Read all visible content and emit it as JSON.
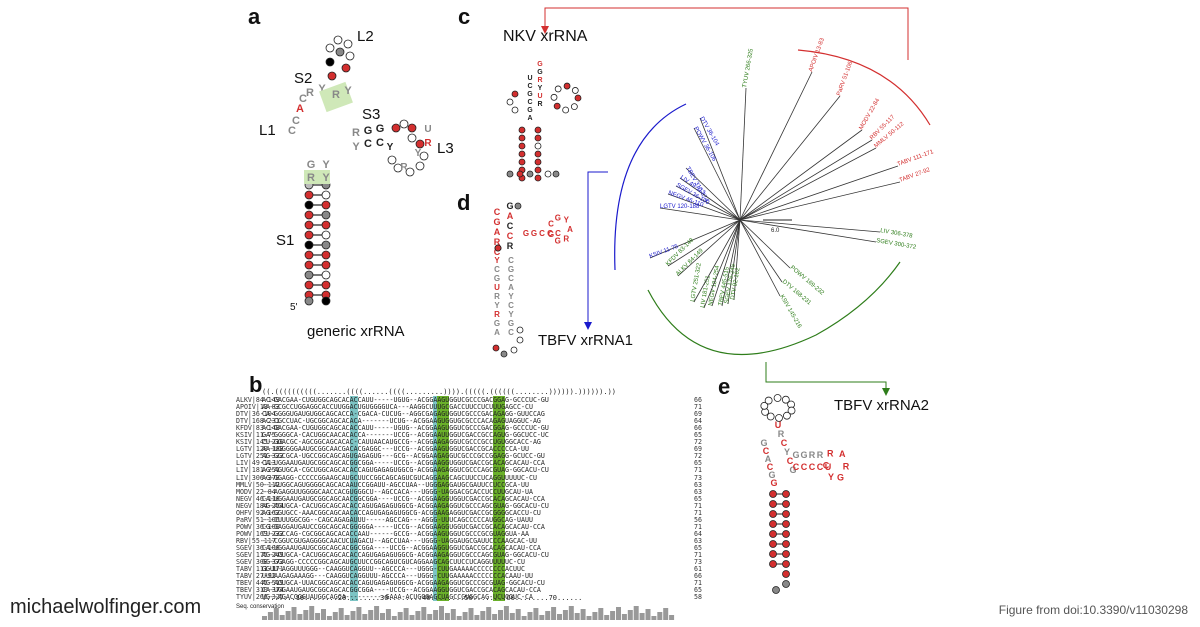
{
  "panels": {
    "a": "a",
    "b": "b",
    "c": "c",
    "d": "d",
    "e": "e"
  },
  "panel_a": {
    "labels": {
      "L2": "L2",
      "S2": "S2",
      "S3": "S3",
      "L1": "L1",
      "L3": "L3",
      "S1": "S1",
      "five_prime": "5'"
    },
    "caption": "generic xrRNA"
  },
  "panel_c": {
    "title_nkv": "NKV xrRNA",
    "tree_red": [
      "APOIV 13-83",
      "PaRV 51-106",
      "MODV 22-84",
      "RBV 55-117",
      "MMLV 50-112",
      "TABV 111-171",
      "TABV 27-92"
    ],
    "tree_blue": [
      "DTV 36-104",
      "POWV 36-106",
      "TBEV 310-374",
      "LIV 49-113",
      "SGEV 36-100",
      "NEGV 46-110",
      "LGTV 120-188",
      "KSIV 11-75"
    ],
    "tree_green": [
      "TYUV 266-325",
      "LIV 306-378",
      "SGEV 300-372",
      "POWV 169-232",
      "DTV 168-231",
      "KSIV 145-216",
      "DTV 92-162",
      "SGEV 175-245",
      "TBEV 445-515",
      "NEGV 184-254",
      "LIV 181-251",
      "LGTV 251-322",
      "ALKV 84-149",
      "KFDV 83-148"
    ],
    "scale": "6.0"
  },
  "panel_d": {
    "caption": "TBFV xrRNA1"
  },
  "panel_e": {
    "caption": "TBFV xrRNA2"
  },
  "panel_b": {
    "dot_bracket": "((.((((((((((.......((((......((((.........)))).(((((.((((((........)))))).)))))).))",
    "names": [
      "ALKV|84-149",
      "APOIV|13-83",
      "DTV|36-104",
      "DTV|168-231",
      "KFDV|83-148",
      "KSIV|11-75",
      "KSIV|145-216",
      "LGTV|120-188",
      "LGTV|251-322",
      "LIV|49-113",
      "LIV|181-251",
      "LIV|306-378",
      "MMLV|50-112",
      "MODV|22-84",
      "NEGV|46-110",
      "NEGV|184-254",
      "OHFV|92-162",
      "PaRV|51-106",
      "POWV|36-106",
      "POWV|169-232",
      "RBV|55-117",
      "SGEV|36-100",
      "SGEV|175-245",
      "SGEV|300-372",
      "TABV|111-171",
      "TABV|27-92",
      "TBEV|445-515",
      "TBEV|310-374",
      "TYUV|266-325"
    ],
    "seqs": [
      "AC-GACGAA-CUGUGGCAGCACACCAUU-----UGUG--ACGGAAGUGGUCGCCCGACGGAG-GCCCUC-GU",
      "AA-GCGCCUGGAGGCACCUUGGACUGUGGGGUCA---AAGGCUUUGCGACCUUCCUCUUUGAGCC-CU",
      "CA-GGGGUGAUGUGGCAGCACCA-CGACA-CUCUG--AGGCGAGAGUGGUCGCCCGACAGAGG-GUUCCAG",
      "AC-CGCCUAC-UGCGGCAGCACACA-------UCUG--ACGGAAGUGGUGCGCCCACAGAGUAGGUC-AG",
      "AC-GACGAA-CUGUGGCAGCACACCAUU-----UGUG--ACGGAAGUGGUCGCCCGACGGAG-GCCCUC-GU",
      "GA-GGGGCA-CACUGGCAACACACCA-------UCCG--ACGGAAUUGGUCGACCGCCAGUG-GGCUCC-UC",
      "CU-GGACGC-AGCGGCAGCACAC-CAUUAACAUGCCG--ACGGAAGAGGUCGCCCGCCUGUGGCACC-AG",
      "AA-UGGGGGAAUGCGGCAACGACACGAGGC---UCCG--ACGGAAGUGGUCGACCGCACCCCCA-UU",
      "AG-GGCGCA-UGCCGGCAGCAGUGAGAGUG---GCG--ACGGAAGAGGUCGCCCGCCGGAGG-GCUCC-GU",
      "CA-UGGAAUGAUGCGGCAGCACGGCGGA-----UCCG--ACGGAAGGUGGUCGACCGCACAGCACAU-CCA",
      "AG-AGUGCA-CGCUGGCAGCACACCAGUGAGAGUGGCG-ACGGAAGAGGUCGCCCAGCGUAG-GGCACU-CU",
      "AG-GGAGG-CCCCCGGAAGCAUGCUUCCGGCAGCAGUCGUCAGGAAGCAGCUUCCUCAGGUUUUUC-CU",
      "---AUGGCAGUGGGGCAGCACAAUCCGGAUU-AGCCUAA--UGGGAGGAUGCGAUUCCUCCGCA-UU",
      "---AGAGGUUGGGGCAACCACGUGGGCU--AGCCACA---UGGG-UAGGACGCACCUCCUUGCAU-UA",
      "CA-UGGAAUGAUGCGGCAGCAACGGCGGA----UCCG--ACGGAAGGUGGUCGACCGCACAGCACAU-CCA",
      "AG-AGUGCA-CACUGGCAGCACACCAGUGAGAGUGGCG-ACGGAAGAGGUCGCCCAGCGUAG-GGCACU-CU",
      "AG-GGUGCC-AAACGGCAGCAACACCAGUGAGAGUGGCG-ACGGAAGAGGUCGACCGCGGGGCACCU-CU",
      "---CUUUGGCGG--CAGCAGAGAUUU-----AGCCAG---AGGG-UUUCAGCCCCCAUGGCAG-UAUU",
      "CG-GAGGAUGAUCCGGCAGCACGGGGGA-----UCCG--ACGGAAGGUGGUCGACCGCACAGCACAU-CCA",
      "CU-GGCCAG-CGCGGCAGCACACCAAU------GCCG--ACGGAAGUGGUCGCCCGCGUAGGUA-AA",
      "---CGGUCGUGAGGGGCAACUCUAGACU--AGCCUAA---UGGG-UAGGAUGCGAUUCCCAAGCAC-UU",
      "CA-UGGAAUGAUGCGGCAGCACGGCGGA----UCCG--ACGGAAGGUGGUCGACCGCACAGCACAU-CCA",
      "AG-AGUGCA-CACUGGCAGCACACCAGUGAGAGUGGCG-ACGGAAGAGGUCGCCCAGCGUAG-GGCACU-CU",
      "GG-GGAGG-CCCCCGGCAGCAUGCUUCCGGCAGUCGUCAGGAAGCAGCUUCCUCAGGUUUUUC-CU",
      "GGUU-AGGUUUGGG--CAAGGUCAGGUU--AGCCCA---UGGG-CUUGAAAAACCCCCCCCACUUC",
      "UUUAAGAGAAAGG---CAAGGUCAGGUUU-AGCCCA---UGGG-CUUGAAAAACCCCCCCACAAU-UU",
      "AG-AGUGCA-UUACGGCAGCACACCAGUGAGAGUGGCG-ACGGAAGAGGUCGCCCGCGUAG-GGCACU-CU",
      "CA-UGGAAUGAUGCGGCAGCACGGCGGA----UCCG--ACGGAAGGUGGUCGACCGCACAGCACAU-CCA",
      "UG--AGACGGGUAUGGCAGCA----------GAAA-ACUGGGAGCUAGCCGUGGCAG-UCUCGUC-CA"
    ],
    "lengths": [
      "66",
      "71",
      "69",
      "64",
      "66",
      "65",
      "72",
      "69",
      "72",
      "65",
      "71",
      "73",
      "63",
      "63",
      "65",
      "71",
      "71",
      "56",
      "71",
      "64",
      "63",
      "65",
      "71",
      "73",
      "61",
      "66",
      "71",
      "65",
      "58"
    ],
    "ruler": "........10........20........30........40........50........60........70......",
    "conservation_label": "Seq. conservation"
  },
  "footer": {
    "brand": "michaelwolfinger.com",
    "source": "Figure from doi:10.3390/v11030298"
  },
  "colors": {
    "red": "#d32f2f",
    "blue": "#1a1acc",
    "green": "#2e7d1a",
    "teal": "#3aa0a0",
    "ygreen": "#6ab02a"
  }
}
